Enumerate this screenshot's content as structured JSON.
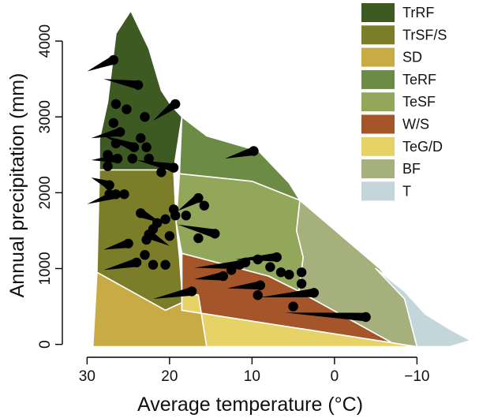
{
  "chart_data": {
    "type": "scatter",
    "title": "",
    "xlabel": "Average temperature (°C)",
    "ylabel": "Annual precipitation (mm)",
    "xlim": [
      33,
      -18
    ],
    "ylim": [
      -170,
      4500
    ],
    "x_axis_reversed": true,
    "x_ticks": [
      30,
      20,
      10,
      0,
      -10
    ],
    "x_tick_labels": [
      "30",
      "20",
      "10",
      "0",
      "−10"
    ],
    "y_ticks": [
      0,
      1000,
      2000,
      3000,
      4000
    ],
    "y_tick_labels": [
      "0",
      "1000",
      "2000",
      "3000",
      "4000"
    ],
    "legend_position": "top-right",
    "biomes": [
      {
        "name": "TrRF",
        "color": "#3c5a22",
        "polygon": [
          [
            26.5,
            4100
          ],
          [
            24.7,
            4400
          ],
          [
            22.5,
            3900
          ],
          [
            21,
            3350
          ],
          [
            19.8,
            3150
          ],
          [
            18.5,
            3000
          ],
          [
            19.5,
            2300
          ],
          [
            28.5,
            2300
          ],
          [
            28.5,
            2700
          ],
          [
            27.5,
            3200
          ]
        ]
      },
      {
        "name": "TrSF/S",
        "color": "#7b7d29",
        "polygon": [
          [
            28.5,
            2300
          ],
          [
            19.5,
            2300
          ],
          [
            19.2,
            1600
          ],
          [
            18.8,
            1150
          ],
          [
            18.5,
            700
          ],
          [
            16.5,
            650
          ],
          [
            20.5,
            450
          ],
          [
            28.8,
            950
          ]
        ]
      },
      {
        "name": "SD",
        "color": "#c9ab46",
        "polygon": [
          [
            28.8,
            950
          ],
          [
            20.5,
            450
          ],
          [
            16.5,
            650
          ],
          [
            15.5,
            -30
          ],
          [
            29.3,
            -30
          ]
        ]
      },
      {
        "name": "TeRF",
        "color": "#6c8b45",
        "polygon": [
          [
            18.5,
            3000
          ],
          [
            15.5,
            2750
          ],
          [
            9.2,
            2550
          ],
          [
            5.5,
            2130
          ],
          [
            4.2,
            1900
          ],
          [
            10,
            2150
          ],
          [
            18.8,
            2250
          ]
        ]
      },
      {
        "name": "TeSF",
        "color": "#93a75a",
        "polygon": [
          [
            18.8,
            2250
          ],
          [
            10,
            2150
          ],
          [
            4.2,
            1900
          ],
          [
            4.6,
            1500
          ],
          [
            3.8,
            1150
          ],
          [
            4.3,
            700
          ],
          [
            8,
            900
          ],
          [
            18.5,
            1200
          ],
          [
            19.2,
            1600
          ]
        ]
      },
      {
        "name": "W/S",
        "color": "#a4562a",
        "polygon": [
          [
            18.5,
            1200
          ],
          [
            8,
            900
          ],
          [
            4.3,
            700
          ],
          [
            -7,
            20
          ],
          [
            18.5,
            450
          ]
        ]
      },
      {
        "name": "TeG/D",
        "color": "#e6d266",
        "polygon": [
          [
            18.5,
            450
          ],
          [
            -7,
            20
          ],
          [
            -10,
            -30
          ],
          [
            15.5,
            -30
          ],
          [
            16.5,
            650
          ],
          [
            18.5,
            700
          ]
        ]
      },
      {
        "name": "BF",
        "color": "#a5b07d",
        "polygon": [
          [
            4.2,
            1900
          ],
          [
            -5.5,
            1000
          ],
          [
            -8.5,
            600
          ],
          [
            -10,
            -30
          ],
          [
            -7,
            20
          ],
          [
            4.3,
            700
          ],
          [
            3.8,
            1150
          ],
          [
            4.6,
            1500
          ]
        ]
      },
      {
        "name": "T",
        "color": "#c3d6da",
        "polygon": [
          [
            -5,
            1000
          ],
          [
            -8.5,
            700
          ],
          [
            -11,
            400
          ],
          [
            -14,
            200
          ],
          [
            -16.5,
            50
          ],
          [
            -14,
            -30
          ],
          [
            -10,
            -30
          ],
          [
            -8.5,
            600
          ]
        ]
      }
    ],
    "points": [
      {
        "x": 26.8,
        "y": 3750,
        "arrow": [
          [
            28.5,
            4000
          ],
          [
            30,
            3600
          ]
        ]
      },
      {
        "x": 23.8,
        "y": 3420,
        "arrow": [
          [
            26.2,
            3600
          ],
          [
            28,
            3500
          ]
        ]
      },
      {
        "x": 26.5,
        "y": 3170
      },
      {
        "x": 25.2,
        "y": 3100
      },
      {
        "x": 19.3,
        "y": 3170,
        "arrow": [
          [
            21,
            3000
          ],
          [
            22,
            2950
          ]
        ]
      },
      {
        "x": 23.0,
        "y": 3000
      },
      {
        "x": 26.8,
        "y": 2920
      },
      {
        "x": 26.0,
        "y": 2800,
        "arrow": [
          [
            28.2,
            2700
          ],
          [
            29.5,
            2720
          ]
        ]
      },
      {
        "x": 23.5,
        "y": 2720
      },
      {
        "x": 26.5,
        "y": 2650
      },
      {
        "x": 24.3,
        "y": 2600,
        "arrow": [
          [
            25.5,
            2680
          ],
          [
            28,
            2750
          ]
        ]
      },
      {
        "x": 22.8,
        "y": 2600
      },
      {
        "x": 27.5,
        "y": 2500
      },
      {
        "x": 26.3,
        "y": 2450,
        "arrow": [
          [
            28,
            2450
          ],
          [
            29.5,
            2430
          ]
        ]
      },
      {
        "x": 24.5,
        "y": 2450
      },
      {
        "x": 22.5,
        "y": 2450
      },
      {
        "x": 19.5,
        "y": 2330,
        "arrow": [
          [
            21.5,
            2350
          ],
          [
            24,
            2430
          ]
        ]
      },
      {
        "x": 27.5,
        "y": 2350
      },
      {
        "x": 21.0,
        "y": 2270
      },
      {
        "x": 27.3,
        "y": 2100,
        "arrow": [
          [
            28.5,
            2150
          ],
          [
            29.5,
            2200
          ]
        ]
      },
      {
        "x": 26.5,
        "y": 1980,
        "arrow": [
          [
            28.5,
            1900
          ],
          [
            30,
            1850
          ]
        ]
      },
      {
        "x": 27.3,
        "y": 1980
      },
      {
        "x": 25.5,
        "y": 1980
      },
      {
        "x": 16.5,
        "y": 1930,
        "arrow": [
          [
            18,
            1800
          ],
          [
            19,
            1760
          ]
        ]
      },
      {
        "x": 15.8,
        "y": 1830
      },
      {
        "x": 19.5,
        "y": 1780
      },
      {
        "x": 19.3,
        "y": 1700
      },
      {
        "x": 23.5,
        "y": 1730,
        "arrow": [
          [
            22,
            1650
          ],
          [
            21,
            1600
          ]
        ]
      },
      {
        "x": 18.0,
        "y": 1700
      },
      {
        "x": 20.5,
        "y": 1650
      },
      {
        "x": 21.5,
        "y": 1600
      },
      {
        "x": 22.0,
        "y": 1520
      },
      {
        "x": 22.5,
        "y": 1450,
        "arrow": [
          [
            21,
            1350
          ],
          [
            20,
            1300
          ]
        ]
      },
      {
        "x": 16.5,
        "y": 1400
      },
      {
        "x": 14.5,
        "y": 1460,
        "arrow": [
          [
            17,
            1500
          ],
          [
            19,
            1580
          ]
        ]
      },
      {
        "x": 20.0,
        "y": 1430
      },
      {
        "x": 25.0,
        "y": 1330,
        "arrow": [
          [
            26.5,
            1280
          ],
          [
            28,
            1250
          ]
        ]
      },
      {
        "x": 22.8,
        "y": 1380
      },
      {
        "x": 23.0,
        "y": 1180
      },
      {
        "x": 24.0,
        "y": 1080,
        "arrow": [
          [
            26,
            1020
          ],
          [
            28,
            980
          ]
        ]
      },
      {
        "x": 20.5,
        "y": 1050
      },
      {
        "x": 22.0,
        "y": 1050
      },
      {
        "x": 17.3,
        "y": 700,
        "arrow": [
          [
            19.5,
            640
          ],
          [
            22,
            600
          ]
        ]
      },
      {
        "x": 10.8,
        "y": 1080
      },
      {
        "x": 11.5,
        "y": 1050,
        "arrow": [
          [
            14,
            1030
          ],
          [
            17,
            1010
          ]
        ]
      },
      {
        "x": 12.5,
        "y": 980
      },
      {
        "x": 13.5,
        "y": 900,
        "arrow": [
          [
            15,
            880
          ],
          [
            17,
            860
          ]
        ]
      },
      {
        "x": 9.3,
        "y": 1120
      },
      {
        "x": 7.0,
        "y": 1150,
        "arrow": [
          [
            9,
            1130
          ],
          [
            12,
            1120
          ]
        ]
      },
      {
        "x": 7.8,
        "y": 1020
      },
      {
        "x": 6.5,
        "y": 950
      },
      {
        "x": 5.5,
        "y": 920
      },
      {
        "x": 4.0,
        "y": 950
      },
      {
        "x": 4.0,
        "y": 800
      },
      {
        "x": 9.0,
        "y": 780,
        "arrow": [
          [
            11,
            760
          ],
          [
            13,
            740
          ]
        ]
      },
      {
        "x": 9.3,
        "y": 650
      },
      {
        "x": 2.5,
        "y": 680,
        "arrow": [
          [
            5,
            660
          ],
          [
            9,
            620
          ]
        ]
      },
      {
        "x": 5.0,
        "y": 500
      },
      {
        "x": -3.8,
        "y": 360,
        "arrow": [
          [
            0,
            360
          ],
          [
            6,
            420
          ]
        ]
      },
      {
        "x": 9.8,
        "y": 2550,
        "arrow": [
          [
            12,
            2480
          ],
          [
            13.3,
            2450
          ]
        ]
      }
    ]
  },
  "legend": [
    {
      "label": "TrRF",
      "color": "#3c5a22"
    },
    {
      "label": "TrSF/S",
      "color": "#7b7d29"
    },
    {
      "label": "SD",
      "color": "#c9ab46"
    },
    {
      "label": "TeRF",
      "color": "#6c8b45"
    },
    {
      "label": "TeSF",
      "color": "#93a75a"
    },
    {
      "label": "W/S",
      "color": "#a4562a"
    },
    {
      "label": "TeG/D",
      "color": "#e6d266"
    },
    {
      "label": "BF",
      "color": "#a5b07d"
    },
    {
      "label": "T",
      "color": "#c3d6da"
    }
  ]
}
